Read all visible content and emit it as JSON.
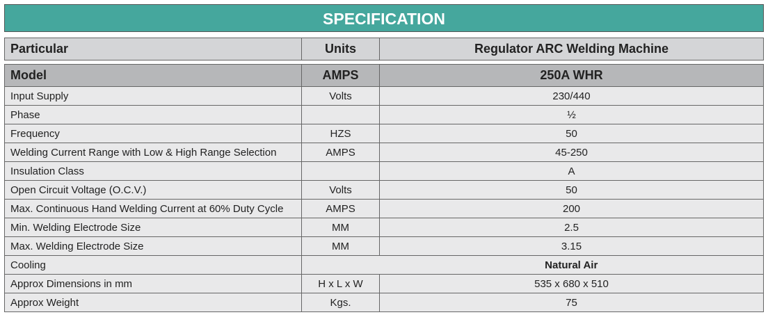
{
  "title": "SPECIFICATION",
  "header": {
    "particular": "Particular",
    "units": "Units",
    "product": "Regulator ARC Welding Machine"
  },
  "model": {
    "particular": "Model",
    "units": "AMPS",
    "value": "250A WHR"
  },
  "rows": [
    {
      "particular": "Input Supply",
      "units": "Volts",
      "value": "230/440"
    },
    {
      "particular": "Phase",
      "units": "",
      "value": "½"
    },
    {
      "particular": "Frequency",
      "units": "HZS",
      "value": "50"
    },
    {
      "particular": "Welding Current Range with Low & High Range Selection",
      "units": "AMPS",
      "value": "45-250"
    },
    {
      "particular": "Insulation Class",
      "units": "",
      "value": "A"
    },
    {
      "particular": "Open Circuit Voltage (O.C.V.)",
      "units": "Volts",
      "value": "50"
    },
    {
      "particular": "Max. Continuous Hand Welding Current at 60% Duty Cycle",
      "units": "AMPS",
      "value": "200"
    },
    {
      "particular": "Min. Welding Electrode Size",
      "units": "MM",
      "value": "2.5"
    },
    {
      "particular": "Max. Welding Electrode Size",
      "units": "MM",
      "value": "3.15"
    },
    {
      "particular": "Cooling",
      "units": "",
      "value": "Natural Air"
    },
    {
      "particular": "Approx Dimensions in mm",
      "units": "H x L x W",
      "value": "535 x 680 x 510"
    },
    {
      "particular": "Approx Weight",
      "units": "Kgs.",
      "value": "75"
    }
  ]
}
